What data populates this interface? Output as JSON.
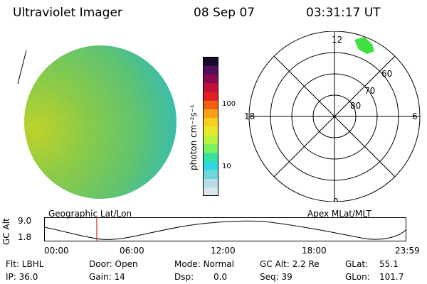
{
  "header": {
    "instrument": "Ultraviolet Imager",
    "date": "08 Sep 07",
    "time": "03:31:17 UT"
  },
  "colorbar": {
    "unit_label": "photon cm⁻²s⁻¹",
    "ticks": [
      "100",
      "10"
    ],
    "colors": [
      "#d8e8ee",
      "#b8dce8",
      "#6fd6dc",
      "#2fd8e0",
      "#36e2a0",
      "#7df060",
      "#b8f040",
      "#e7ea2a",
      "#f8d020",
      "#f8a018",
      "#f06010",
      "#e02020",
      "#c0103a",
      "#8a0a50",
      "#50105a",
      "#1a0a2a"
    ]
  },
  "earth_disk": {
    "colors": {
      "bright": "#d8e830",
      "mid": "#9de050",
      "base": "#6ed87a",
      "cool": "#3fd0c0"
    }
  },
  "polar_plot": {
    "mlt_labels": {
      "top": "12",
      "bottom": "0",
      "left": "18",
      "right": "6"
    },
    "lat_labels": [
      "60",
      "70",
      "80"
    ],
    "blob_color": "#40e040"
  },
  "altitude_plot": {
    "left_title": "Geographic Lat/Lon",
    "right_title": "Apex MLat/MLT",
    "y_axis_label": "GC Alt",
    "y_ticks": [
      "9.0",
      "1.8"
    ],
    "x_ticks": [
      "00:00",
      "06:00",
      "12:00",
      "18:00",
      "23:59"
    ],
    "current_marker_color": "#c00000"
  },
  "status": {
    "flt": "Flt: LBHL",
    "ip": "IP: 36.0",
    "door": "Door: Open",
    "gain": "Gain: 14",
    "mode": "Mode: Normal",
    "dsp_label": "Dsp:",
    "dsp_value": "0.0",
    "gc_alt": "GC Alt: 2.2 Re",
    "seq": "Seq: 39",
    "glat_label": "GLat:",
    "glat_value": "55.1",
    "glon_label": "GLon:",
    "glon_value": "101.7"
  }
}
